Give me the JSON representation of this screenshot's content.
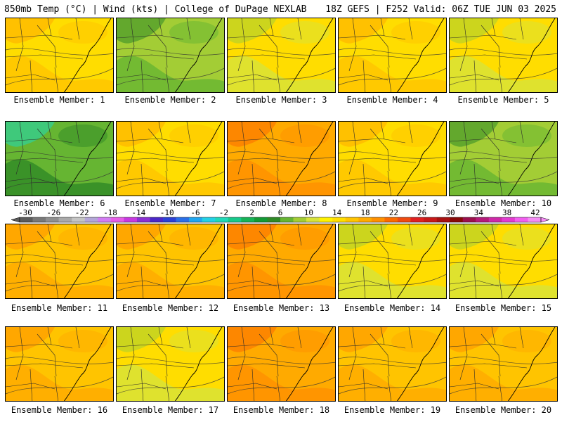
{
  "header": {
    "left": "850mb Temp (°C) | Wind (kts) | College of DuPage NEXLAB",
    "right": "18Z GEFS | F252 Valid: 06Z TUE JUN 03 2025"
  },
  "caption_prefix": "Ensemble Member:",
  "members": [
    {
      "label": "Ensemble Member: 1",
      "warmth": 0.45
    },
    {
      "label": "Ensemble Member: 2",
      "warmth": 0.2
    },
    {
      "label": "Ensemble Member: 3",
      "warmth": 0.3
    },
    {
      "label": "Ensemble Member: 4",
      "warmth": 0.4
    },
    {
      "label": "Ensemble Member: 5",
      "warmth": 0.35
    },
    {
      "label": "Ensemble Member: 6",
      "warmth": 0.05
    },
    {
      "label": "Ensemble Member: 7",
      "warmth": 0.45
    },
    {
      "label": "Ensemble Member: 8",
      "warmth": 0.75
    },
    {
      "label": "Ensemble Member: 9",
      "warmth": 0.45
    },
    {
      "label": "Ensemble Member: 10",
      "warmth": 0.25
    },
    {
      "label": "Ensemble Member: 11",
      "warmth": 0.65
    },
    {
      "label": "Ensemble Member: 12",
      "warmth": 0.6
    },
    {
      "label": "Ensemble Member: 13",
      "warmth": 0.75
    },
    {
      "label": "Ensemble Member: 14",
      "warmth": 0.35
    },
    {
      "label": "Ensemble Member: 15",
      "warmth": 0.3
    },
    {
      "label": "Ensemble Member: 16",
      "warmth": 0.6
    },
    {
      "label": "Ensemble Member: 17",
      "warmth": 0.3
    },
    {
      "label": "Ensemble Member: 18",
      "warmth": 0.8
    },
    {
      "label": "Ensemble Member: 19",
      "warmth": 0.6
    },
    {
      "label": "Ensemble Member: 20",
      "warmth": 0.55
    }
  ],
  "colorbar": {
    "ticks": [
      "-30",
      "-26",
      "-22",
      "-18",
      "-14",
      "-10",
      "-6",
      "-2",
      "2",
      "6",
      "10",
      "14",
      "18",
      "22",
      "26",
      "30",
      "34",
      "38",
      "42"
    ],
    "colors": [
      "#5b5b5b",
      "#787878",
      "#8f8f8f",
      "#a9a9a9",
      "#c4c4c4",
      "#b3a6d8",
      "#d27cf3",
      "#e65ce8",
      "#c838e0",
      "#8a2fd3",
      "#4b27c8",
      "#2b40d6",
      "#2a6fe8",
      "#1fa6f0",
      "#23d1e6",
      "#1fd9b8",
      "#17c98a",
      "#16b357",
      "#129a35",
      "#2f8a26",
      "#66b532",
      "#a3cd35",
      "#d7e33a",
      "#fff200",
      "#ffdd00",
      "#ffc400",
      "#ffaa00",
      "#ff9000",
      "#fb6a00",
      "#f04a10",
      "#e02020",
      "#c81818",
      "#a81010",
      "#880808",
      "#9c0f4d",
      "#b51a7a",
      "#cf28a8",
      "#e33bd0",
      "#f25ef0",
      "#f58cf5"
    ]
  }
}
